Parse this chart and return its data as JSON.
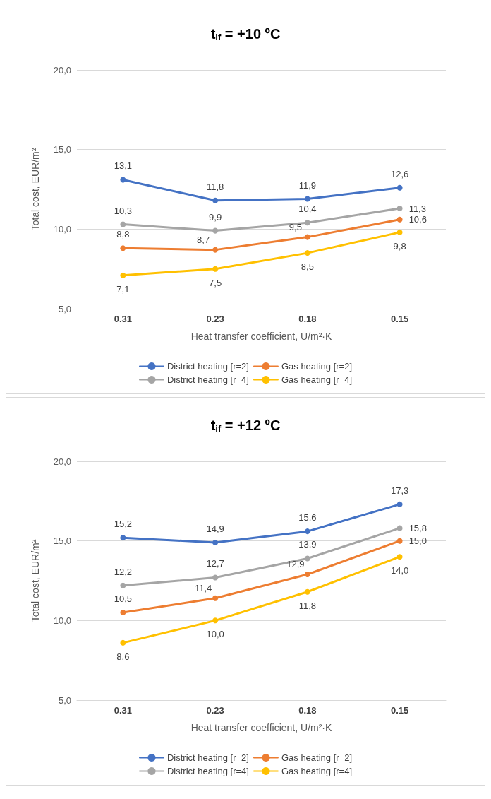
{
  "chart_data": [
    {
      "type": "line",
      "title": "t$_{if}$ = +10 ºC",
      "xlabel": "Heat transfer coefficient, U/m²·K",
      "ylabel": "Total cost, EUR/m²",
      "categories": [
        "0.31",
        "0.23",
        "0.18",
        "0.15"
      ],
      "ylim": [
        5,
        20
      ],
      "yticks": [
        {
          "value": 5,
          "label": "5,0"
        },
        {
          "value": 10,
          "label": "10,0"
        },
        {
          "value": 15,
          "label": "15,0"
        },
        {
          "value": 20,
          "label": "20,0"
        }
      ],
      "grid": "y",
      "legend": "bottom",
      "marker": "circle",
      "line_style": "solid",
      "series": [
        {
          "name": "District heating [r=2]",
          "color": "#4472c4",
          "values": [
            13.1,
            11.8,
            11.9,
            12.6
          ],
          "value_labels": [
            "13,1",
            "11,8",
            "11,9",
            "12,6"
          ]
        },
        {
          "name": "Gas heating [r=2]",
          "color": "#ed7d31",
          "values": [
            8.8,
            8.7,
            9.5,
            10.6
          ],
          "value_labels": [
            "8,8",
            "8,7",
            "9,5",
            "10,6"
          ]
        },
        {
          "name": "District heating [r=4]",
          "color": "#a5a5a5",
          "values": [
            10.3,
            9.9,
            10.4,
            11.3
          ],
          "value_labels": [
            "10,3",
            "9,9",
            "10,4",
            "11,3"
          ]
        },
        {
          "name": "Gas heating [r=4]",
          "color": "#ffc000",
          "values": [
            7.1,
            7.5,
            8.5,
            9.8
          ],
          "value_labels": [
            "7,1",
            "7,5",
            "8,5",
            "9,8"
          ]
        }
      ]
    },
    {
      "type": "line",
      "title": "t$_{if}$ = +12 ºC",
      "xlabel": "Heat transfer coefficient, U/m²·K",
      "ylabel": "Total cost, EUR/m²",
      "categories": [
        "0.31",
        "0.23",
        "0.18",
        "0.15"
      ],
      "ylim": [
        5,
        20
      ],
      "yticks": [
        {
          "value": 5,
          "label": "5,0"
        },
        {
          "value": 10,
          "label": "10,0"
        },
        {
          "value": 15,
          "label": "15,0"
        },
        {
          "value": 20,
          "label": "20,0"
        }
      ],
      "grid": "y",
      "legend": "bottom",
      "marker": "circle",
      "line_style": "solid",
      "series": [
        {
          "name": "District heating [r=2]",
          "color": "#4472c4",
          "values": [
            15.2,
            14.9,
            15.6,
            17.3
          ],
          "value_labels": [
            "15,2",
            "14,9",
            "15,6",
            "17,3"
          ]
        },
        {
          "name": "Gas heating [r=2]",
          "color": "#ed7d31",
          "values": [
            10.5,
            11.4,
            12.9,
            15.0
          ],
          "value_labels": [
            "10,5",
            "11,4",
            "12,9",
            "15,0"
          ]
        },
        {
          "name": "District heating [r=4]",
          "color": "#a5a5a5",
          "values": [
            12.2,
            12.7,
            13.9,
            15.8
          ],
          "value_labels": [
            "12,2",
            "12,7",
            "13,9",
            "15,8"
          ]
        },
        {
          "name": "Gas heating [r=4]",
          "color": "#ffc000",
          "values": [
            8.6,
            10.0,
            11.8,
            14.0
          ],
          "value_labels": [
            "8,6",
            "10,0",
            "11,8",
            "14,0"
          ]
        }
      ]
    }
  ]
}
